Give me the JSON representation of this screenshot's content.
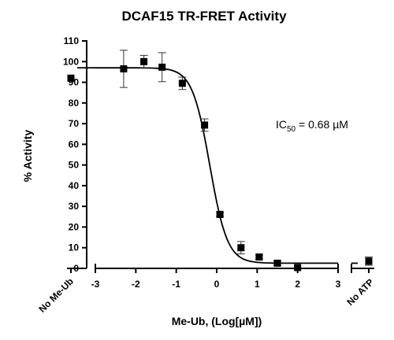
{
  "chart_data": {
    "type": "scatter",
    "title": "DCAF15 TR-FRET Activity",
    "xlabel": "Me-Ub, (Log[µM])",
    "ylabel": "% Activity",
    "annotation": {
      "prefix": "IC",
      "subscript": "50",
      "suffix": " = 0.68 µM"
    },
    "ylim": [
      0,
      110
    ],
    "yticks": [
      "0",
      "10",
      "20",
      "30",
      "40",
      "50",
      "60",
      "70",
      "80",
      "90",
      "100",
      "110"
    ],
    "xlim": [
      -3,
      3
    ],
    "xticks": [
      "-3",
      "-2",
      "-1",
      "0",
      "1",
      "2",
      "3"
    ],
    "controls": [
      {
        "label": "No Me-Ub",
        "y": 92
      },
      {
        "label": "No ATP",
        "y": 3.5,
        "err": 2
      }
    ],
    "points": [
      {
        "x": -2.3,
        "y": 96.5,
        "err": 9
      },
      {
        "x": -1.8,
        "y": 100,
        "err": 3
      },
      {
        "x": -1.35,
        "y": 97.3,
        "err": 7
      },
      {
        "x": -0.85,
        "y": 89.5,
        "err": 3
      },
      {
        "x": -0.3,
        "y": 69.3,
        "err": 3
      },
      {
        "x": 0.08,
        "y": 26.1,
        "err": 1
      },
      {
        "x": 0.6,
        "y": 10,
        "err": 3
      },
      {
        "x": 1.05,
        "y": 5.5,
        "err": 1
      },
      {
        "x": 1.5,
        "y": 2.5,
        "err": 1
      },
      {
        "x": 2.0,
        "y": 0.4,
        "err": 0
      }
    ],
    "fit": {
      "type": "four-parameter logistic",
      "top": 97,
      "bottom": 2.5,
      "log_ic50": -0.17,
      "hill": -2.0
    },
    "grid": false,
    "legend": "none"
  }
}
